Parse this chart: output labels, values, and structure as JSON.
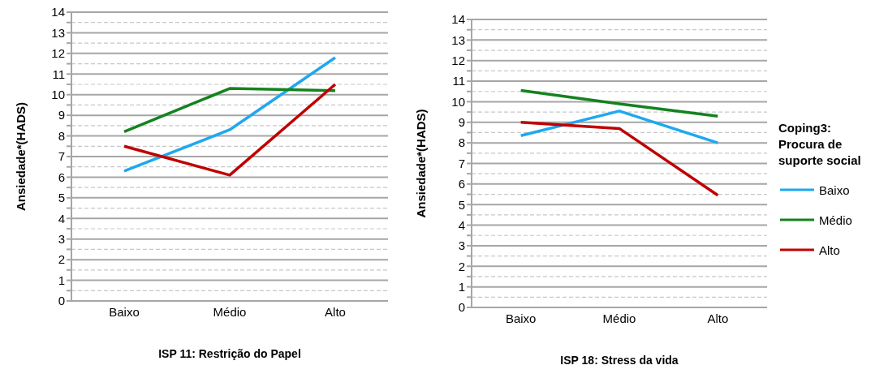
{
  "chart_data": [
    {
      "type": "line",
      "xlabel": "ISP 11:  Restrição do Papel",
      "ylabel": "Ansiedade*(HADS)",
      "categories": [
        "Baixo",
        "Médio",
        "Alto"
      ],
      "series": [
        {
          "color": "#1ea8f0",
          "values": [
            6.3,
            8.3,
            11.8
          ]
        },
        {
          "color": "#14821e",
          "values": [
            8.2,
            10.3,
            10.2
          ]
        },
        {
          "color": "#c00000",
          "values": [
            7.5,
            6.1,
            10.5
          ]
        }
      ],
      "ylim": [
        0,
        14
      ],
      "yticks": [
        0,
        {
          "value": 0.5,
          "label": null
        },
        1,
        {
          "value": 1.5,
          "label": null
        },
        2,
        {
          "value": 2.5,
          "label": null
        },
        3,
        {
          "value": 3.5,
          "label": null
        },
        4,
        {
          "value": 4.5,
          "label": null
        },
        5,
        {
          "value": 5.5,
          "label": null
        },
        6,
        {
          "value": 6.5,
          "label": null
        },
        7,
        {
          "value": 7.5,
          "label": null
        },
        8,
        {
          "value": 8.5,
          "label": null
        },
        9,
        {
          "value": 9.5,
          "label": null
        },
        10,
        {
          "value": 10.5,
          "label": null
        },
        11,
        {
          "value": 11.5,
          "label": null
        },
        12,
        {
          "value": 12.5,
          "label": null
        },
        13,
        {
          "value": 13.5,
          "label": null
        },
        14
      ],
      "grid": "y",
      "legend": false
    },
    {
      "type": "line",
      "xlabel": "ISP 18:  Stress da vida",
      "ylabel": "Ansiedade*(HADS)",
      "legend_title": "Coping3: Procura de suporte social",
      "categories": [
        "Baixo",
        "Médio",
        "Alto"
      ],
      "series": [
        {
          "name": "Baixo",
          "color": "#1ea8f0",
          "values": [
            8.35,
            9.55,
            8.0
          ]
        },
        {
          "name": "Médio",
          "color": "#14821e",
          "values": [
            10.55,
            9.9,
            9.3
          ]
        },
        {
          "name": "Alto",
          "color": "#c00000",
          "values": [
            9.0,
            8.7,
            5.45
          ]
        }
      ],
      "ylim": [
        0,
        14
      ],
      "yticks": [
        0,
        {
          "value": 0.5,
          "label": null
        },
        1,
        {
          "value": 1.5,
          "label": null
        },
        2,
        {
          "value": 2.5,
          "label": null
        },
        3,
        {
          "value": 3.5,
          "label": null
        },
        4,
        {
          "value": 4.5,
          "label": null
        },
        5,
        {
          "value": 5.5,
          "label": null
        },
        6,
        {
          "value": 6.5,
          "label": null
        },
        7,
        {
          "value": 7.5,
          "label": null
        },
        8,
        {
          "value": 8.5,
          "label": null
        },
        9,
        {
          "value": 9.5,
          "label": null
        },
        10,
        {
          "value": 10.5,
          "label": null
        },
        11,
        {
          "value": 11.5,
          "label": null
        },
        12,
        {
          "value": 12.5,
          "label": null
        },
        13,
        {
          "value": 13.5,
          "label": null
        },
        14
      ],
      "grid": "y",
      "legend": "right"
    }
  ]
}
